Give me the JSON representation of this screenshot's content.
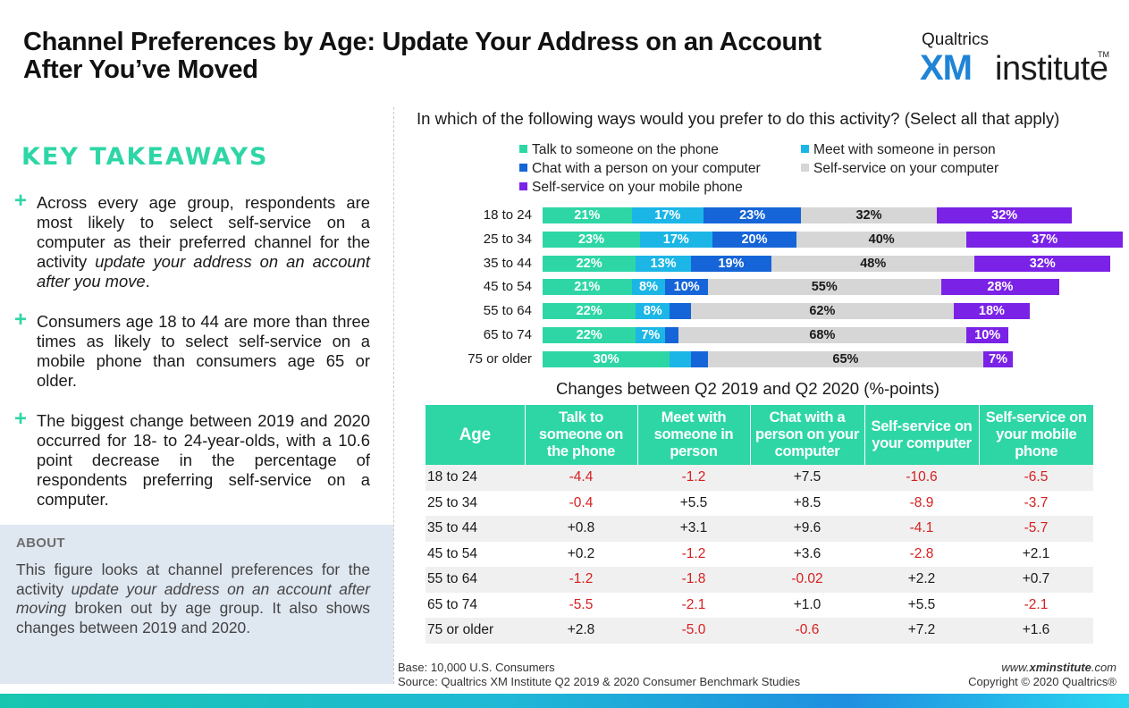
{
  "header": {
    "title": "Channel Preferences by Age: Update Your Address on an Account After You’ve Moved",
    "logo": {
      "top": "Qualtrics",
      "xm": "XM",
      "institute": "institute",
      "tm": "TM"
    }
  },
  "takeaways": {
    "heading": "KEY TAKEAWAYS",
    "bullets": [
      {
        "pre": "Across every age group, respondents are most likely to select self-service on a computer as their preferred channel for the activity ",
        "em": "update your address on an account after you move",
        "post": "."
      },
      {
        "pre": "Consumers age 18 to 44 are more than three times as likely to select self-service on a mobile phone than consumers age 65 or older.",
        "em": "",
        "post": ""
      },
      {
        "pre": "The biggest change between 2019 and 2020 occurred for 18- to 24-year-olds, with a 10.6 point decrease in the percentage of respondents preferring self-service on a computer.",
        "em": "",
        "post": ""
      }
    ]
  },
  "about": {
    "heading": "ABOUT",
    "pre": "This figure looks at channel preferences for the activity ",
    "em": "update your address on an account after moving",
    "post": " broken out by age group. It also shows changes between 2019 and 2020."
  },
  "chart_data": {
    "type": "bar",
    "orientation": "horizontal",
    "stacked": true,
    "title": "In which of the following ways would you prefer to do this activity? (Select all that apply)",
    "categories": [
      "18 to 24",
      "25 to 34",
      "35 to 44",
      "45 to 54",
      "55 to 64",
      "65 to 74",
      "75 or older"
    ],
    "series": [
      {
        "name": "Talk to someone on the phone",
        "color": "#2ed6a6",
        "text": "light",
        "values": [
          21,
          23,
          22,
          21,
          22,
          22,
          30
        ],
        "labels": [
          "21%",
          "23%",
          "22%",
          "21%",
          "22%",
          "22%",
          "30%"
        ]
      },
      {
        "name": "Meet with someone in person",
        "color": "#1bb6e6",
        "text": "light",
        "values": [
          17,
          17,
          13,
          8,
          8,
          7,
          5
        ],
        "labels": [
          "17%",
          "17%",
          "13%",
          "8%",
          "8%",
          "7%",
          ""
        ]
      },
      {
        "name": "Chat with a person on your computer",
        "color": "#1565d8",
        "text": "light",
        "values": [
          23,
          20,
          19,
          10,
          5,
          3,
          4
        ],
        "labels": [
          "23%",
          "20%",
          "19%",
          "10%",
          "",
          "",
          ""
        ]
      },
      {
        "name": "Self-service on your computer",
        "color": "#d6d6d6",
        "text": "dark",
        "values": [
          32,
          40,
          48,
          55,
          62,
          68,
          65
        ],
        "labels": [
          "32%",
          "40%",
          "48%",
          "55%",
          "62%",
          "68%",
          "65%"
        ]
      },
      {
        "name": "Self-service on your mobile phone",
        "color": "#7a22e6",
        "text": "light",
        "values": [
          32,
          37,
          32,
          28,
          18,
          10,
          7
        ],
        "labels": [
          "32%",
          "37%",
          "32%",
          "28%",
          "18%",
          "10%",
          "7%"
        ]
      }
    ],
    "legend_position": "top",
    "grid": false
  },
  "changes": {
    "title": "Changes between Q2 2019 and Q2 2020 (%-points)",
    "headers": [
      "Age",
      "Talk to someone on the phone",
      "Meet with someone in person",
      "Chat with a person on your computer",
      "Self-service on your computer",
      "Self-service on your mobile phone"
    ],
    "rows": [
      [
        "18 to 24",
        "-4.4",
        "-1.2",
        "+7.5",
        "-10.6",
        "-6.5"
      ],
      [
        "25 to 34",
        "-0.4",
        "+5.5",
        "+8.5",
        "-8.9",
        "-3.7"
      ],
      [
        "35 to 44",
        "+0.8",
        "+3.1",
        "+9.6",
        "-4.1",
        "-5.7"
      ],
      [
        "45 to 54",
        "+0.2",
        "-1.2",
        "+3.6",
        "-2.8",
        "+2.1"
      ],
      [
        "55 to 64",
        "-1.2",
        "-1.8",
        "-0.02",
        "+2.2",
        "+0.7"
      ],
      [
        "65 to 74",
        "-5.5",
        "-2.1",
        "+1.0",
        "+5.5",
        "-2.1"
      ],
      [
        "75 or older",
        "+2.8",
        "-5.0",
        "-0.6",
        "+7.2",
        "+1.6"
      ]
    ],
    "negative_color": "#d62020"
  },
  "footer": {
    "base": "Base: 10,000 U.S. Consumers",
    "source": "Source: Qualtrics XM Institute Q2 2019 & 2020 Consumer Benchmark Studies",
    "website_pre": "www.",
    "website_bold": "xminstitute",
    "website_post": ".com",
    "copyright": "Copyright © 2020 Qualtrics®"
  }
}
